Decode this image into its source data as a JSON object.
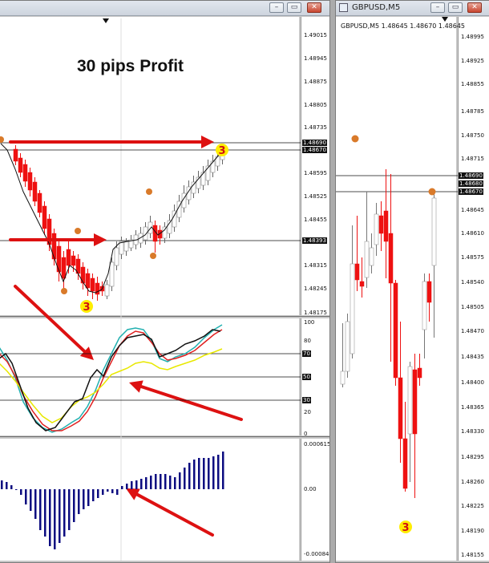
{
  "left_window": {
    "heading": "30 pips Profit",
    "price_scale": [
      "1.49015",
      "1.48945",
      "1.48875",
      "1.48805",
      "1.48735",
      "1.48595",
      "1.48525",
      "1.48455",
      "1.48315",
      "1.48245",
      "1.48175"
    ],
    "price_tags": [
      "1.48690",
      "1.48670",
      "1.48393"
    ],
    "oscillator_scale": [
      "100",
      "80",
      "70",
      "50",
      "30",
      "20",
      "0"
    ],
    "histogram_scale": [
      "0.000615",
      "0.00",
      "-0.00084"
    ],
    "marker_label": "3"
  },
  "right_window": {
    "title": "GBPUSD,M5",
    "symbol_line": "GBPUSD,M5  1.48645 1.48670 1.48645",
    "price_scale": [
      "1.48995",
      "1.48925",
      "1.48855",
      "1.48785",
      "1.48750",
      "1.48715",
      "1.48645",
      "1.48610",
      "1.48575",
      "1.48540",
      "1.48505",
      "1.48470",
      "1.48435",
      "1.48400",
      "1.48365",
      "1.48330",
      "1.48295",
      "1.48260",
      "1.48225",
      "1.48190",
      "1.48155"
    ],
    "price_tags": [
      "1.48690",
      "1.48680",
      "1.48670"
    ],
    "marker_label": "3"
  },
  "colors": {
    "bull": "#ffffff",
    "bear": "#ee1111",
    "arrow": "#dd1111",
    "histogram": "#0b0b80",
    "marker_orange": "#d97a2a",
    "marker_yellow": "#ffee00"
  }
}
